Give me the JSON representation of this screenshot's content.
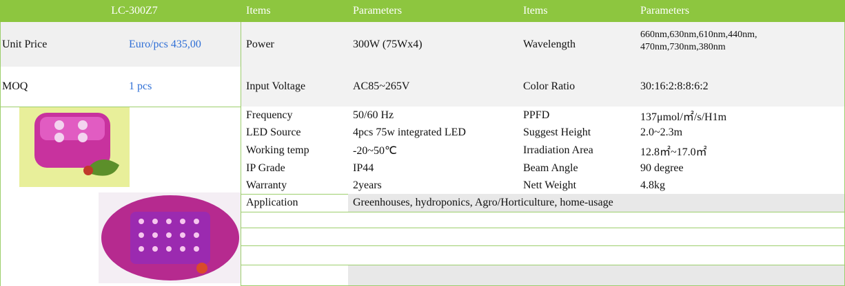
{
  "header": {
    "model": "LC-300Z7",
    "columns": [
      "Items",
      "Parameters",
      "Items",
      "Parameters"
    ]
  },
  "left": [
    [
      "Unit Price",
      "Euro/pcs 435,00"
    ],
    [
      "MOQ",
      "1 pcs"
    ]
  ],
  "specs": [
    [
      "Power",
      "300W (75Wx4)",
      "Wavelength",
      [
        "660nm,630nm,610nm,440nm,",
        "470nm,730nm,380nm"
      ]
    ],
    [
      "Input Voltage",
      "AC85~265V",
      "Color Ratio",
      "30:16:2:8:8:6:2"
    ],
    [
      "Frequency",
      "50/60 Hz",
      "PPFD",
      "137μmol/㎡/s/H1m"
    ],
    [
      "LED Source",
      "4pcs 75w integrated LED",
      "Suggest Height",
      "2.0~2.3m"
    ],
    [
      "Working temp",
      " -20~50℃",
      "Irradiation Area",
      "12.8㎡~17.0㎡"
    ],
    [
      "IP Grade",
      "IP44",
      "Beam Angle",
      "90 degree"
    ],
    [
      "Warranty",
      "2years",
      "Nett Weight",
      "4.8kg"
    ]
  ],
  "application": [
    "Application",
    "Greenhouses, hydroponics, Agro/Horticulture, home-usage"
  ]
}
